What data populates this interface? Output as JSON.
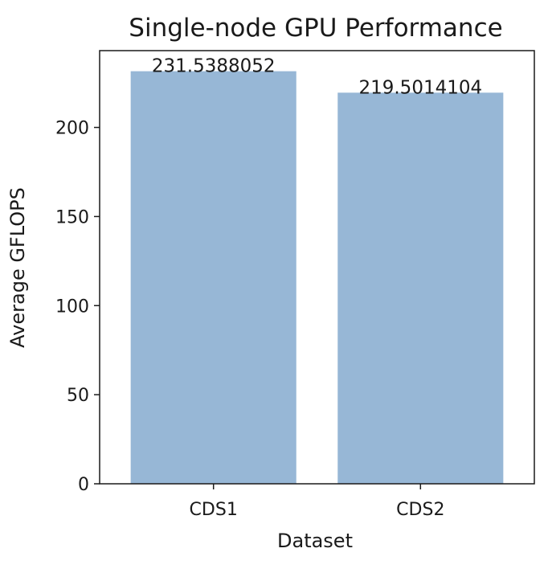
{
  "chart_data": {
    "type": "bar",
    "title": "Single-node GPU Performance",
    "xlabel": "Dataset",
    "ylabel": "Average GFLOPS",
    "categories": [
      "CDS1",
      "CDS2"
    ],
    "values": [
      231.5388052,
      219.5014104
    ],
    "data_labels": [
      "231.5388052",
      "219.5014104"
    ],
    "ylim": [
      0,
      243.1
    ],
    "yticks": [
      0,
      50,
      100,
      150,
      200
    ],
    "bar_color": "#97b7d6",
    "grid": false,
    "legend": "none"
  }
}
